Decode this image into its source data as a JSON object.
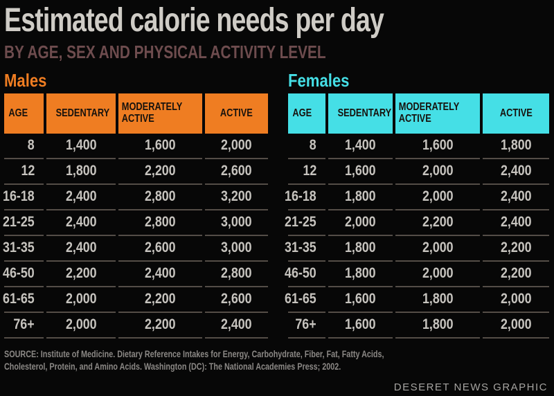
{
  "header": {
    "title": "Estimated calorie needs per day",
    "subtitle": "BY AGE, SEX AND PHYSICAL ACTIVITY LEVEL"
  },
  "chart_data": [
    {
      "type": "table",
      "title": "Males",
      "accent_color": "#EF7D22",
      "columns": [
        "AGE",
        "SEDENTARY",
        "MODERATELY ACTIVE",
        "ACTIVE"
      ],
      "rows": [
        [
          "8",
          "1,400",
          "1,600",
          "2,000"
        ],
        [
          "12",
          "1,800",
          "2,200",
          "2,600"
        ],
        [
          "16-18",
          "2,400",
          "2,800",
          "3,200"
        ],
        [
          "21-25",
          "2,400",
          "2,800",
          "3,000"
        ],
        [
          "31-35",
          "2,400",
          "2,600",
          "3,000"
        ],
        [
          "46-50",
          "2,200",
          "2,400",
          "2,800"
        ],
        [
          "61-65",
          "2,000",
          "2,200",
          "2,600"
        ],
        [
          "76+",
          "2,000",
          "2,200",
          "2,400"
        ]
      ]
    },
    {
      "type": "table",
      "title": "Females",
      "accent_color": "#45DFE6",
      "columns": [
        "AGE",
        "SEDENTARY",
        "MODERATELY ACTIVE",
        "ACTIVE"
      ],
      "rows": [
        [
          "8",
          "1,400",
          "1,600",
          "1,800"
        ],
        [
          "12",
          "1,600",
          "2,000",
          "2,400"
        ],
        [
          "16-18",
          "1,800",
          "2,000",
          "2,400"
        ],
        [
          "21-25",
          "2,000",
          "2,200",
          "2,400"
        ],
        [
          "31-35",
          "1,800",
          "2,000",
          "2,200"
        ],
        [
          "46-50",
          "1,800",
          "2,000",
          "2,200"
        ],
        [
          "61-65",
          "1,600",
          "1,800",
          "2,000"
        ],
        [
          "76+",
          "1,600",
          "1,800",
          "2,000"
        ]
      ]
    }
  ],
  "footer": {
    "source_line1": "SOURCE: Institute of Medicine. Dietary Reference Intakes for Energy, Carbohydrate, Fiber, Fat, Fatty Acids,",
    "source_line2": "Cholesterol, Protein, and Amino Acids. Washington (DC): The National Academies Press; 2002.",
    "credit": "DESERET NEWS GRAPHIC"
  },
  "colors": {
    "background": "#070707",
    "male_accent": "#EF7D22",
    "female_accent": "#45DFE6",
    "title_text": "#CFCCC6",
    "subtitle_text": "#6E4C4E",
    "header_cell_text": "#17120D",
    "value_text": "#C6C3BE",
    "divider": "#544D47",
    "source_text": "#8B8885",
    "credit_text": "#A5A3A0"
  }
}
